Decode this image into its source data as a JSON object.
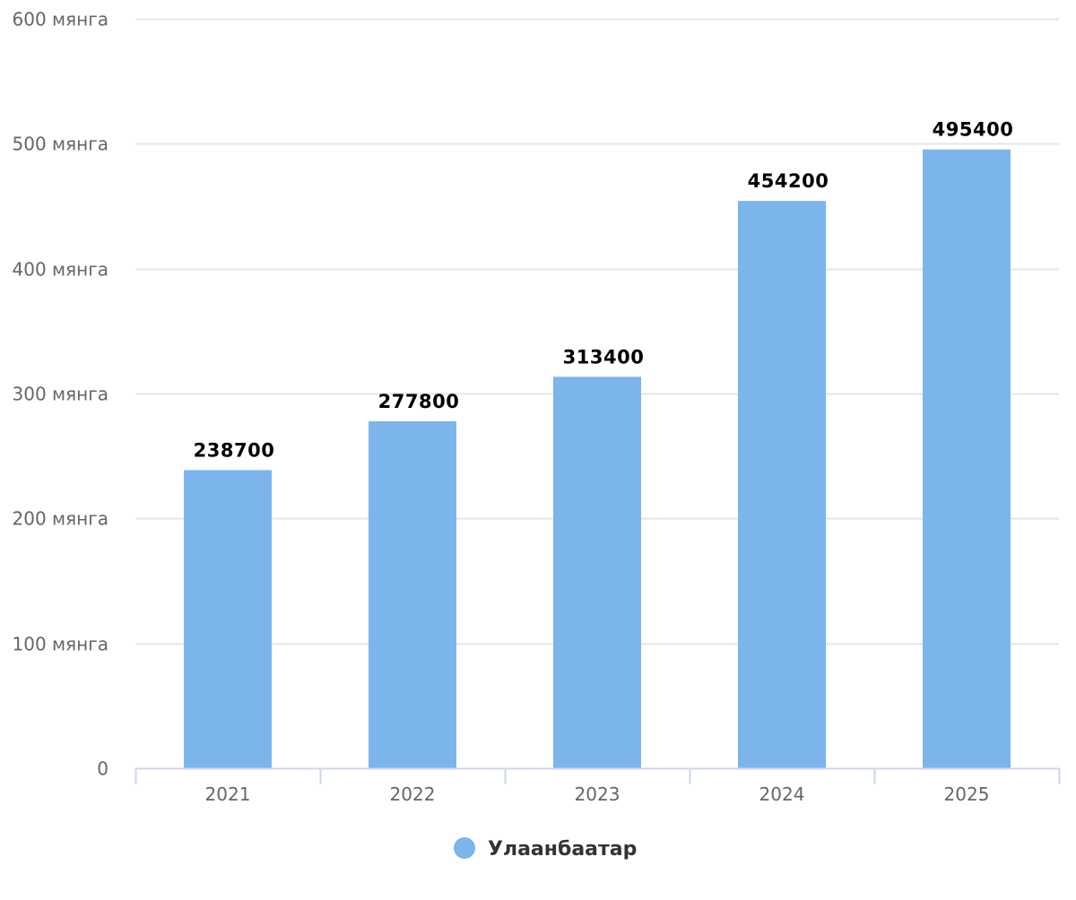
{
  "chart_data": {
    "type": "bar",
    "categories": [
      "2021",
      "2022",
      "2023",
      "2024",
      "2025"
    ],
    "series": [
      {
        "name": "Улаанбаатар",
        "values": [
          238700,
          277800,
          313400,
          454200,
          495400
        ],
        "color": "#7cb5ec"
      }
    ],
    "data_labels": [
      "238700",
      "277800",
      "313400",
      "454200",
      "495400"
    ],
    "y_ticks": [
      0,
      100000,
      200000,
      300000,
      400000,
      500000,
      600000
    ],
    "y_tick_labels": [
      "0",
      "100 мянга",
      "200 мянга",
      "300 мянга",
      "400 мянга",
      "500 мянга",
      "600 мянга"
    ],
    "ylim": [
      0,
      600000
    ],
    "title": "",
    "xlabel": "",
    "ylabel": "",
    "grid": true,
    "legend_position": "bottom-center",
    "colors": {
      "bar": "#7cb5ec",
      "grid": "#e6e6e6",
      "axis": "#ccd6eb"
    }
  }
}
